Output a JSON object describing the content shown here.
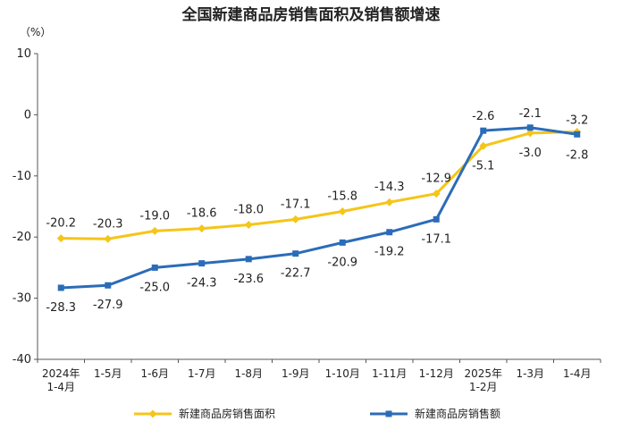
{
  "chart_data": {
    "type": "line",
    "title": "全国新建商品房销售面积及销售额增速",
    "unit": "（%）",
    "ylim": [
      -40,
      10
    ],
    "yticks": [
      "10",
      "0",
      "-10",
      "-20",
      "-30",
      "-40"
    ],
    "ytick_values": [
      10,
      0,
      -10,
      -20,
      -30,
      -40
    ],
    "categories": [
      [
        "2024年",
        "1-4月"
      ],
      [
        "1-5月"
      ],
      [
        "1-6月"
      ],
      [
        "1-7月"
      ],
      [
        "1-8月"
      ],
      [
        "1-9月"
      ],
      [
        "1-10月"
      ],
      [
        "1-11月"
      ],
      [
        "1-12月"
      ],
      [
        "2025年",
        "1-2月"
      ],
      [
        "1-3月"
      ],
      [
        "1-4月"
      ]
    ],
    "series": [
      {
        "name": "新建商品房销售面积",
        "color": "#F5C518",
        "marker": "diamond",
        "values": [
          -20.2,
          -20.3,
          -19.0,
          -18.6,
          -18.0,
          -17.1,
          -15.8,
          -14.3,
          -12.9,
          -5.1,
          -3.0,
          -2.8
        ],
        "labels": [
          "-20.2",
          "-20.3",
          "-19.0",
          "-18.6",
          "-18.0",
          "-17.1",
          "-15.8",
          "-14.3",
          "-12.9",
          "-5.1",
          "-3.0",
          "-2.8"
        ]
      },
      {
        "name": "新建商品房销售额",
        "color": "#2B6CB8",
        "marker": "square",
        "values": [
          -28.3,
          -27.9,
          -25.0,
          -24.3,
          -23.6,
          -22.7,
          -20.9,
          -19.2,
          -17.1,
          -2.6,
          -2.1,
          -3.2
        ],
        "labels": [
          "-28.3",
          "-27.9",
          "-25.0",
          "-24.3",
          "-23.6",
          "-22.7",
          "-20.9",
          "-19.2",
          "-17.1",
          "-2.6",
          "-2.1",
          "-3.2"
        ]
      }
    ],
    "grid": false,
    "legend_position": "bottom"
  }
}
